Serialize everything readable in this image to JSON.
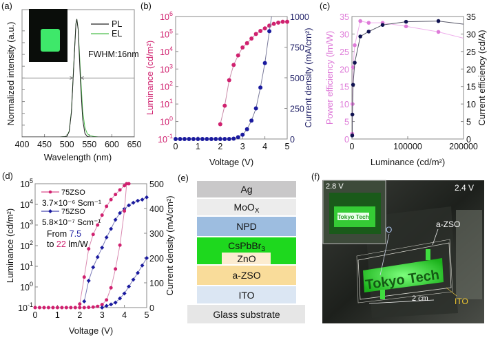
{
  "panels": {
    "a": "(a)",
    "b": "(b)",
    "c": "(c)",
    "d": "(d)",
    "e": "(e)",
    "f": "(f)"
  },
  "colors": {
    "pl": "#222222",
    "el": "#4cbf4c",
    "lum": "#d0216f",
    "cur": "#1a1a9e",
    "cur_axis": "#1f1f66",
    "pe": "#de7ad8",
    "ce": "#0f1150",
    "pe_line": "#efb0ec",
    "ce_line": "#555566"
  },
  "chart_data": [
    {
      "id": "a",
      "type": "line",
      "xlabel": "Wavelength (nm)",
      "ylabel": "Normalized intensity (a.u.)",
      "xlim": [
        400,
        650
      ],
      "xticks": [
        400,
        450,
        500,
        550,
        600,
        650
      ],
      "ylim": [
        0,
        1.08
      ],
      "annotation": "FWHM:16nm",
      "fwhm_level": 0.5,
      "fwhm_nm": [
        514,
        530
      ],
      "legend": [
        "PL",
        "EL"
      ],
      "legend_position": "top-right",
      "series": [
        {
          "name": "PL",
          "x": [
            400,
            485,
            495,
            500,
            505,
            510,
            515,
            520,
            522,
            525,
            530,
            535,
            540,
            545,
            550,
            560,
            650
          ],
          "y": [
            0,
            0,
            0.002,
            0.006,
            0.045,
            0.21,
            0.59,
            0.96,
            1.0,
            0.91,
            0.48,
            0.15,
            0.03,
            0.005,
            0,
            0,
            0
          ]
        },
        {
          "name": "EL",
          "x": [
            400,
            485,
            495,
            500,
            505,
            510,
            515,
            520,
            522,
            525,
            530,
            535,
            540,
            545,
            550,
            560,
            570,
            650
          ],
          "y": [
            0,
            0,
            0.003,
            0.008,
            0.05,
            0.22,
            0.6,
            0.96,
            1.0,
            0.92,
            0.55,
            0.22,
            0.08,
            0.03,
            0.012,
            0.004,
            0,
            0
          ]
        }
      ]
    },
    {
      "id": "b",
      "type": "line",
      "xlabel": "Voltage (V)",
      "ylabel_left": "Luminance (cd/m²)",
      "ylabel_right": "Current density (mA/cm²)",
      "xlim": [
        0,
        5
      ],
      "xticks": [
        0,
        1,
        2,
        3,
        4,
        5
      ],
      "yleft_log_exp": [
        -1,
        0,
        1,
        2,
        3,
        4,
        5,
        6
      ],
      "yright": [
        0,
        250,
        500,
        750,
        1000
      ],
      "series": [
        {
          "name": "Luminance",
          "axis": "left",
          "x": [
            2.0,
            2.2,
            2.4,
            2.6,
            2.8,
            3.0,
            3.2,
            3.4,
            3.6,
            3.8,
            4.0,
            4.2,
            4.4,
            4.6,
            4.8,
            5.0
          ],
          "y": [
            0.7,
            8,
            230,
            1700,
            6000,
            17000,
            30000,
            55000,
            100000,
            150000,
            210000,
            300000,
            380000,
            450000,
            500000,
            500000
          ]
        },
        {
          "name": "Current density",
          "axis": "right",
          "x": [
            0,
            0.2,
            0.4,
            0.6,
            0.8,
            1.0,
            1.2,
            1.4,
            1.6,
            1.8,
            2.0,
            2.2,
            2.4,
            2.6,
            2.8,
            3.0,
            3.2,
            3.4,
            3.6,
            3.8,
            4.0,
            4.2
          ],
          "y": [
            0,
            0,
            0,
            0,
            0,
            0,
            0,
            0,
            0,
            0,
            0,
            0,
            0,
            3,
            15,
            35,
            80,
            150,
            250,
            420,
            620,
            880
          ]
        }
      ]
    },
    {
      "id": "c",
      "type": "line",
      "xlabel": "Luminance (cd/m²)",
      "ylabel_left": "Power efficiency (lm/W)",
      "ylabel_right": "Current efficiency (cd/A)",
      "xlim": [
        0,
        200000
      ],
      "xticks": [
        0,
        100000,
        200000
      ],
      "yleft": [
        0,
        5,
        10,
        15,
        20,
        25,
        30,
        35
      ],
      "yright": [
        0,
        5,
        10,
        15,
        20,
        25,
        30,
        35
      ],
      "series": [
        {
          "name": "Power efficiency",
          "axis": "left",
          "x": [
            500,
            1000,
            2000,
            5000,
            15000,
            30000,
            55000,
            97000,
            155000,
            200000
          ],
          "y": [
            1.5,
            10,
            20.5,
            26.8,
            33.7,
            33.2,
            33.2,
            32.2,
            30.6,
            28.8
          ]
        },
        {
          "name": "Current efficiency",
          "axis": "right",
          "x": [
            500,
            800,
            2000,
            5000,
            15000,
            30000,
            55000,
            97000,
            155000,
            200000
          ],
          "y": [
            1,
            7,
            15.5,
            21.8,
            29.3,
            30.7,
            32.6,
            33.5,
            33.7,
            32.8
          ]
        }
      ]
    },
    {
      "id": "d",
      "type": "line",
      "xlabel": "Voltage (V)",
      "ylabel_left": "Luminance (cd/m²)",
      "ylabel_right": "Current density (mA/cm²)",
      "xlim": [
        0,
        5
      ],
      "xticks": [
        0,
        1,
        2,
        3,
        4,
        5
      ],
      "yleft_log_exp": [
        -1,
        0,
        1,
        2,
        3,
        4,
        5
      ],
      "yright": [
        0,
        100,
        200,
        300,
        400,
        500
      ],
      "legend": [
        {
          "name": "75ZSO",
          "conductivity": "3.7×10⁻⁶ Scm⁻¹"
        },
        {
          "name": "75ZSO",
          "conductivity": "5.8×10⁻⁷ Scm⁻¹"
        }
      ],
      "note": {
        "from": "From ",
        "from_val": "7.5",
        "to": "to ",
        "to_val": "22",
        "unit": " lm/W"
      },
      "series": [
        {
          "name": "Luminance 3.7e-6",
          "axis": "left",
          "marker": "circle",
          "x": [
            2.0,
            2.2,
            2.4,
            2.6,
            2.8,
            3.0,
            3.2,
            3.4,
            3.6,
            3.8,
            4.0,
            4.2
          ],
          "y": [
            0.15,
            3,
            70,
            350,
            1000,
            3000,
            8000,
            17000,
            30000,
            50000,
            80000,
            100000
          ]
        },
        {
          "name": "Luminance 5.8e-7",
          "axis": "left",
          "marker": "diamond",
          "x": [
            2.2,
            2.4,
            2.6,
            2.8,
            3.0,
            3.2,
            3.4,
            3.6,
            3.8,
            4.0,
            4.2,
            4.4,
            4.6,
            4.8,
            5.0
          ],
          "y": [
            0.2,
            2,
            9,
            28,
            80,
            250,
            650,
            1800,
            3800,
            6000,
            9000,
            12000,
            15000,
            17000,
            22000
          ]
        },
        {
          "name": "Current 3.7e-6",
          "axis": "right",
          "marker": "circle",
          "x": [
            0,
            0.2,
            0.4,
            0.6,
            0.8,
            1.0,
            1.2,
            1.4,
            1.6,
            1.8,
            2.0,
            2.2,
            2.4,
            2.6,
            2.8,
            3.0,
            3.2,
            3.4,
            3.6,
            3.8,
            4.0,
            4.1
          ],
          "y": [
            0,
            0,
            0,
            0,
            0,
            0,
            0,
            0,
            0,
            0,
            0,
            0,
            1,
            2,
            5,
            12,
            31,
            80,
            156,
            252,
            390,
            500
          ]
        },
        {
          "name": "Current 5.8e-7",
          "axis": "right",
          "marker": "diamond",
          "x": [
            3.0,
            3.2,
            3.4,
            3.6,
            3.8,
            4.0,
            4.2,
            4.4,
            4.6,
            4.8,
            5.0
          ],
          "y": [
            0,
            7,
            13,
            20,
            37,
            57,
            85,
            113,
            140,
            170,
            200
          ]
        }
      ]
    }
  ],
  "stack": {
    "layers": [
      "Ag",
      "MoO",
      "NPD",
      "CsPbBr",
      "ZnO",
      "a-ZSO",
      "ITO",
      "Glass substrate"
    ],
    "moox_sub": "X",
    "cspbbr_sub": "3",
    "colors": {
      "Ag": "#c9c8c9",
      "MoOx": "#ececec",
      "NPD": "#9dbde0",
      "CsPbBr3": "#1ed81e",
      "ZnO": "#fcecd0",
      "aZSO": "#f9dc9a",
      "ITO": "#dbe6f3",
      "Glass": "#e6e6e6"
    }
  },
  "photo": {
    "inset_voltage": "2.8 V",
    "main_voltage": "2.4 V",
    "logo": "Tokyo Tech",
    "labels": {
      "zno": "ZnO",
      "azso": "a-ZSO",
      "ito": "ITO",
      "scale": "2 cm"
    }
  }
}
